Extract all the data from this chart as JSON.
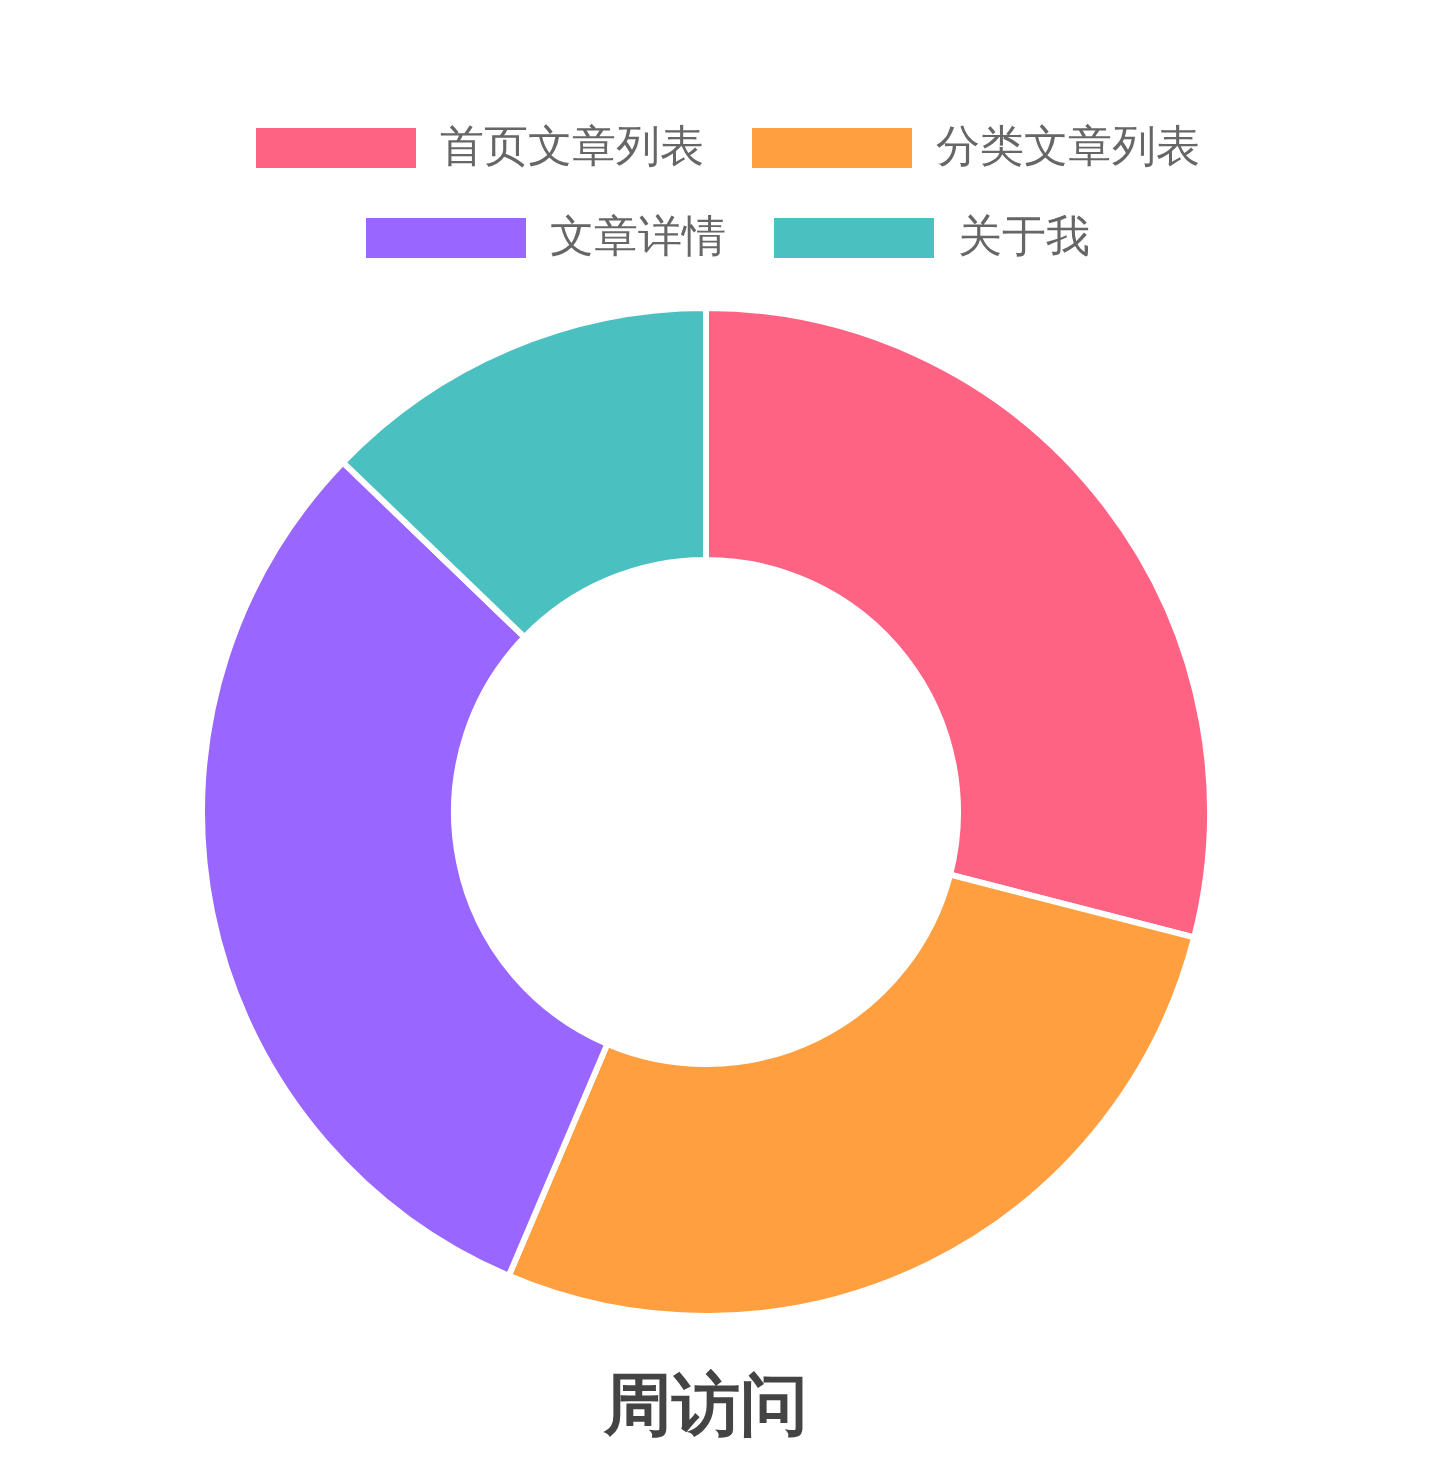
{
  "chart_data": {
    "type": "donut",
    "title": "周访问",
    "legend": "top",
    "categories": [
      "首页文章列表",
      "分类文章列表",
      "文章详情",
      "关于我"
    ],
    "values": [
      29,
      27.4,
      30.8,
      12.8
    ],
    "colors": [
      "#ff6384",
      "#ff9f40",
      "#9966ff",
      "#4bc0c0"
    ]
  }
}
